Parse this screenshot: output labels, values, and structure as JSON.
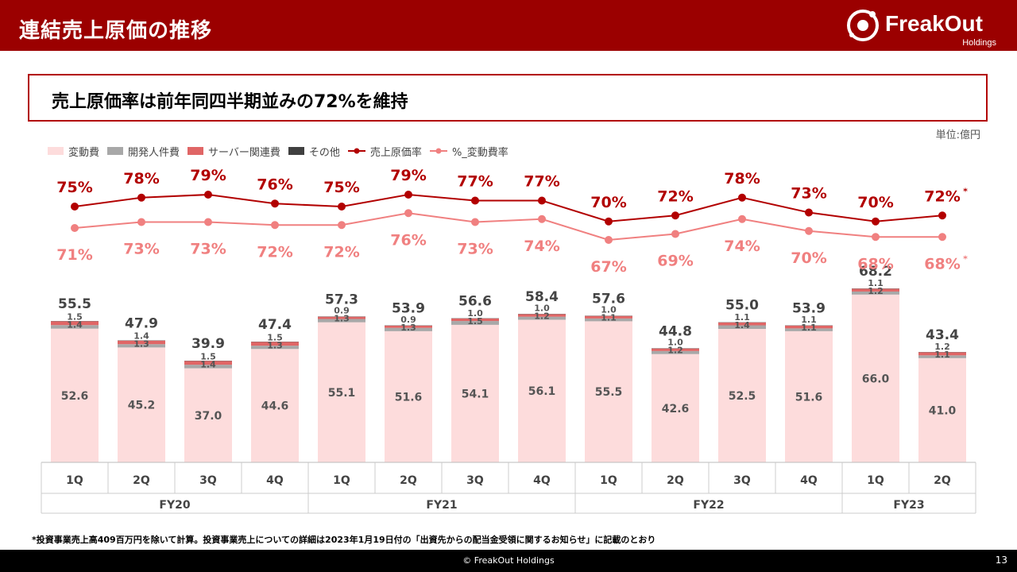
{
  "header": {
    "title": "連結売上原価の推移"
  },
  "logo": {
    "name": "FreakOut",
    "sub": "Holdings"
  },
  "headline": "売上原価率は前年同四半期並みの72%を維持",
  "unit": "単位:億円",
  "legend": [
    {
      "label": "変動費",
      "kind": "box",
      "color": "#fddcdc"
    },
    {
      "label": "開発人件費",
      "kind": "box",
      "color": "#a8a8a8"
    },
    {
      "label": "サーバー関連費",
      "kind": "box",
      "color": "#e06666"
    },
    {
      "label": "その他",
      "kind": "box",
      "color": "#404040"
    },
    {
      "label": "売上原価率",
      "kind": "line",
      "color": "#b20000"
    },
    {
      "label": "%_変動費率",
      "kind": "line",
      "color": "#f08080"
    }
  ],
  "chart_data": {
    "type": "bar",
    "categories": [
      "1Q",
      "2Q",
      "3Q",
      "4Q",
      "1Q",
      "2Q",
      "3Q",
      "4Q",
      "1Q",
      "2Q",
      "3Q",
      "4Q",
      "1Q",
      "2Q"
    ],
    "groups": [
      {
        "label": "FY20",
        "start": 0,
        "count": 4
      },
      {
        "label": "FY21",
        "start": 4,
        "count": 4
      },
      {
        "label": "FY22",
        "start": 8,
        "count": 4
      },
      {
        "label": "FY23",
        "start": 12,
        "count": 2
      }
    ],
    "totals": [
      "55.5",
      "47.9",
      "39.9",
      "47.4",
      "57.3",
      "53.9",
      "56.6",
      "58.4",
      "57.6",
      "44.8",
      "55.0",
      "53.9",
      "68.2",
      "43.4"
    ],
    "series": [
      {
        "name": "変動費",
        "color": "#fddcdc",
        "values": [
          52.6,
          45.2,
          37.0,
          44.6,
          55.1,
          51.6,
          54.1,
          56.1,
          55.5,
          42.6,
          52.5,
          51.6,
          66.0,
          41.0
        ],
        "labels": [
          "52.6",
          "45.2",
          "37.0",
          "44.6",
          "55.1",
          "51.6",
          "54.1",
          "56.1",
          "55.5",
          "42.6",
          "52.5",
          "51.6",
          "66.0",
          "41.0"
        ]
      },
      {
        "name": "開発人件費",
        "color": "#a8a8a8",
        "values": [
          1.4,
          1.3,
          1.4,
          1.3,
          1.3,
          1.3,
          1.5,
          1.2,
          1.1,
          1.2,
          1.4,
          1.1,
          1.2,
          1.1
        ],
        "labels": [
          "1.4",
          "1.3",
          "1.4",
          "1.3",
          "1.3",
          "1.3",
          "1.5",
          "1.2",
          "1.1",
          "1.2",
          "1.4",
          "1.1",
          "1.2",
          "1.1"
        ]
      },
      {
        "name": "サーバー関連費",
        "color": "#e06666",
        "values": [
          1.5,
          1.4,
          1.5,
          1.5,
          0.9,
          0.9,
          1.0,
          1.0,
          1.0,
          1.0,
          1.1,
          1.1,
          1.1,
          1.2
        ],
        "labels": [
          "1.5",
          "1.4",
          "1.5",
          "1.5",
          "0.9",
          "0.9",
          "1.0",
          "1.0",
          "1.0",
          "1.0",
          "1.1",
          "1.1",
          "1.1",
          "1.2"
        ]
      },
      {
        "name": "その他",
        "color": "#404040",
        "values": [
          0.1,
          0.1,
          0.1,
          0.1,
          0.1,
          0.1,
          0.1,
          0.1,
          0.1,
          0.1,
          0.1,
          0.1,
          0.1,
          0.1
        ]
      }
    ],
    "lines": [
      {
        "name": "売上原価率",
        "color": "#b20000",
        "values": [
          75,
          78,
          79,
          76,
          75,
          79,
          77,
          77,
          70,
          72,
          78,
          73,
          70,
          72
        ],
        "labels": [
          "75%",
          "78%",
          "79%",
          "76%",
          "75%",
          "79%",
          "77%",
          "77%",
          "70%",
          "72%",
          "78%",
          "73%",
          "70%",
          "72%"
        ],
        "last_marker": "*"
      },
      {
        "name": "%_変動費率",
        "color": "#f08080",
        "values": [
          71,
          73,
          73,
          72,
          72,
          76,
          73,
          74,
          67,
          69,
          74,
          70,
          68,
          68
        ],
        "labels": [
          "71%",
          "73%",
          "73%",
          "72%",
          "72%",
          "76%",
          "73%",
          "74%",
          "67%",
          "69%",
          "74%",
          "70%",
          "68%",
          "68%"
        ],
        "last_marker": "*"
      }
    ]
  },
  "footnote": "*投資事業売上高409百万円を除いて計算。投資事業売上についての詳細は2023年1月19日付の「出資先からの配当金受領に関するお知らせ」に記載のとおり",
  "footer": {
    "copyright": "© FreakOut Holdings",
    "page": "13"
  }
}
